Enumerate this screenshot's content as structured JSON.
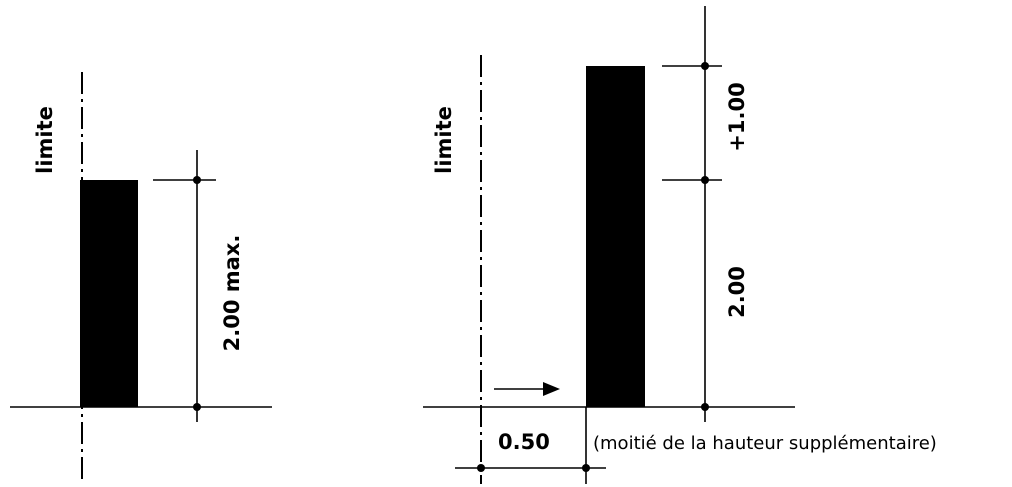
{
  "left_figure": {
    "limit_label": "limite",
    "height_label": "2.00 max."
  },
  "right_figure": {
    "limit_label": "limite",
    "base_height_label": "2.00",
    "extra_height_label": "+1.00",
    "offset_label": "0.50",
    "offset_note": "(moitié de la hauteur supplémentaire)"
  },
  "colors": {
    "ink": "#000000",
    "background": "#ffffff"
  }
}
